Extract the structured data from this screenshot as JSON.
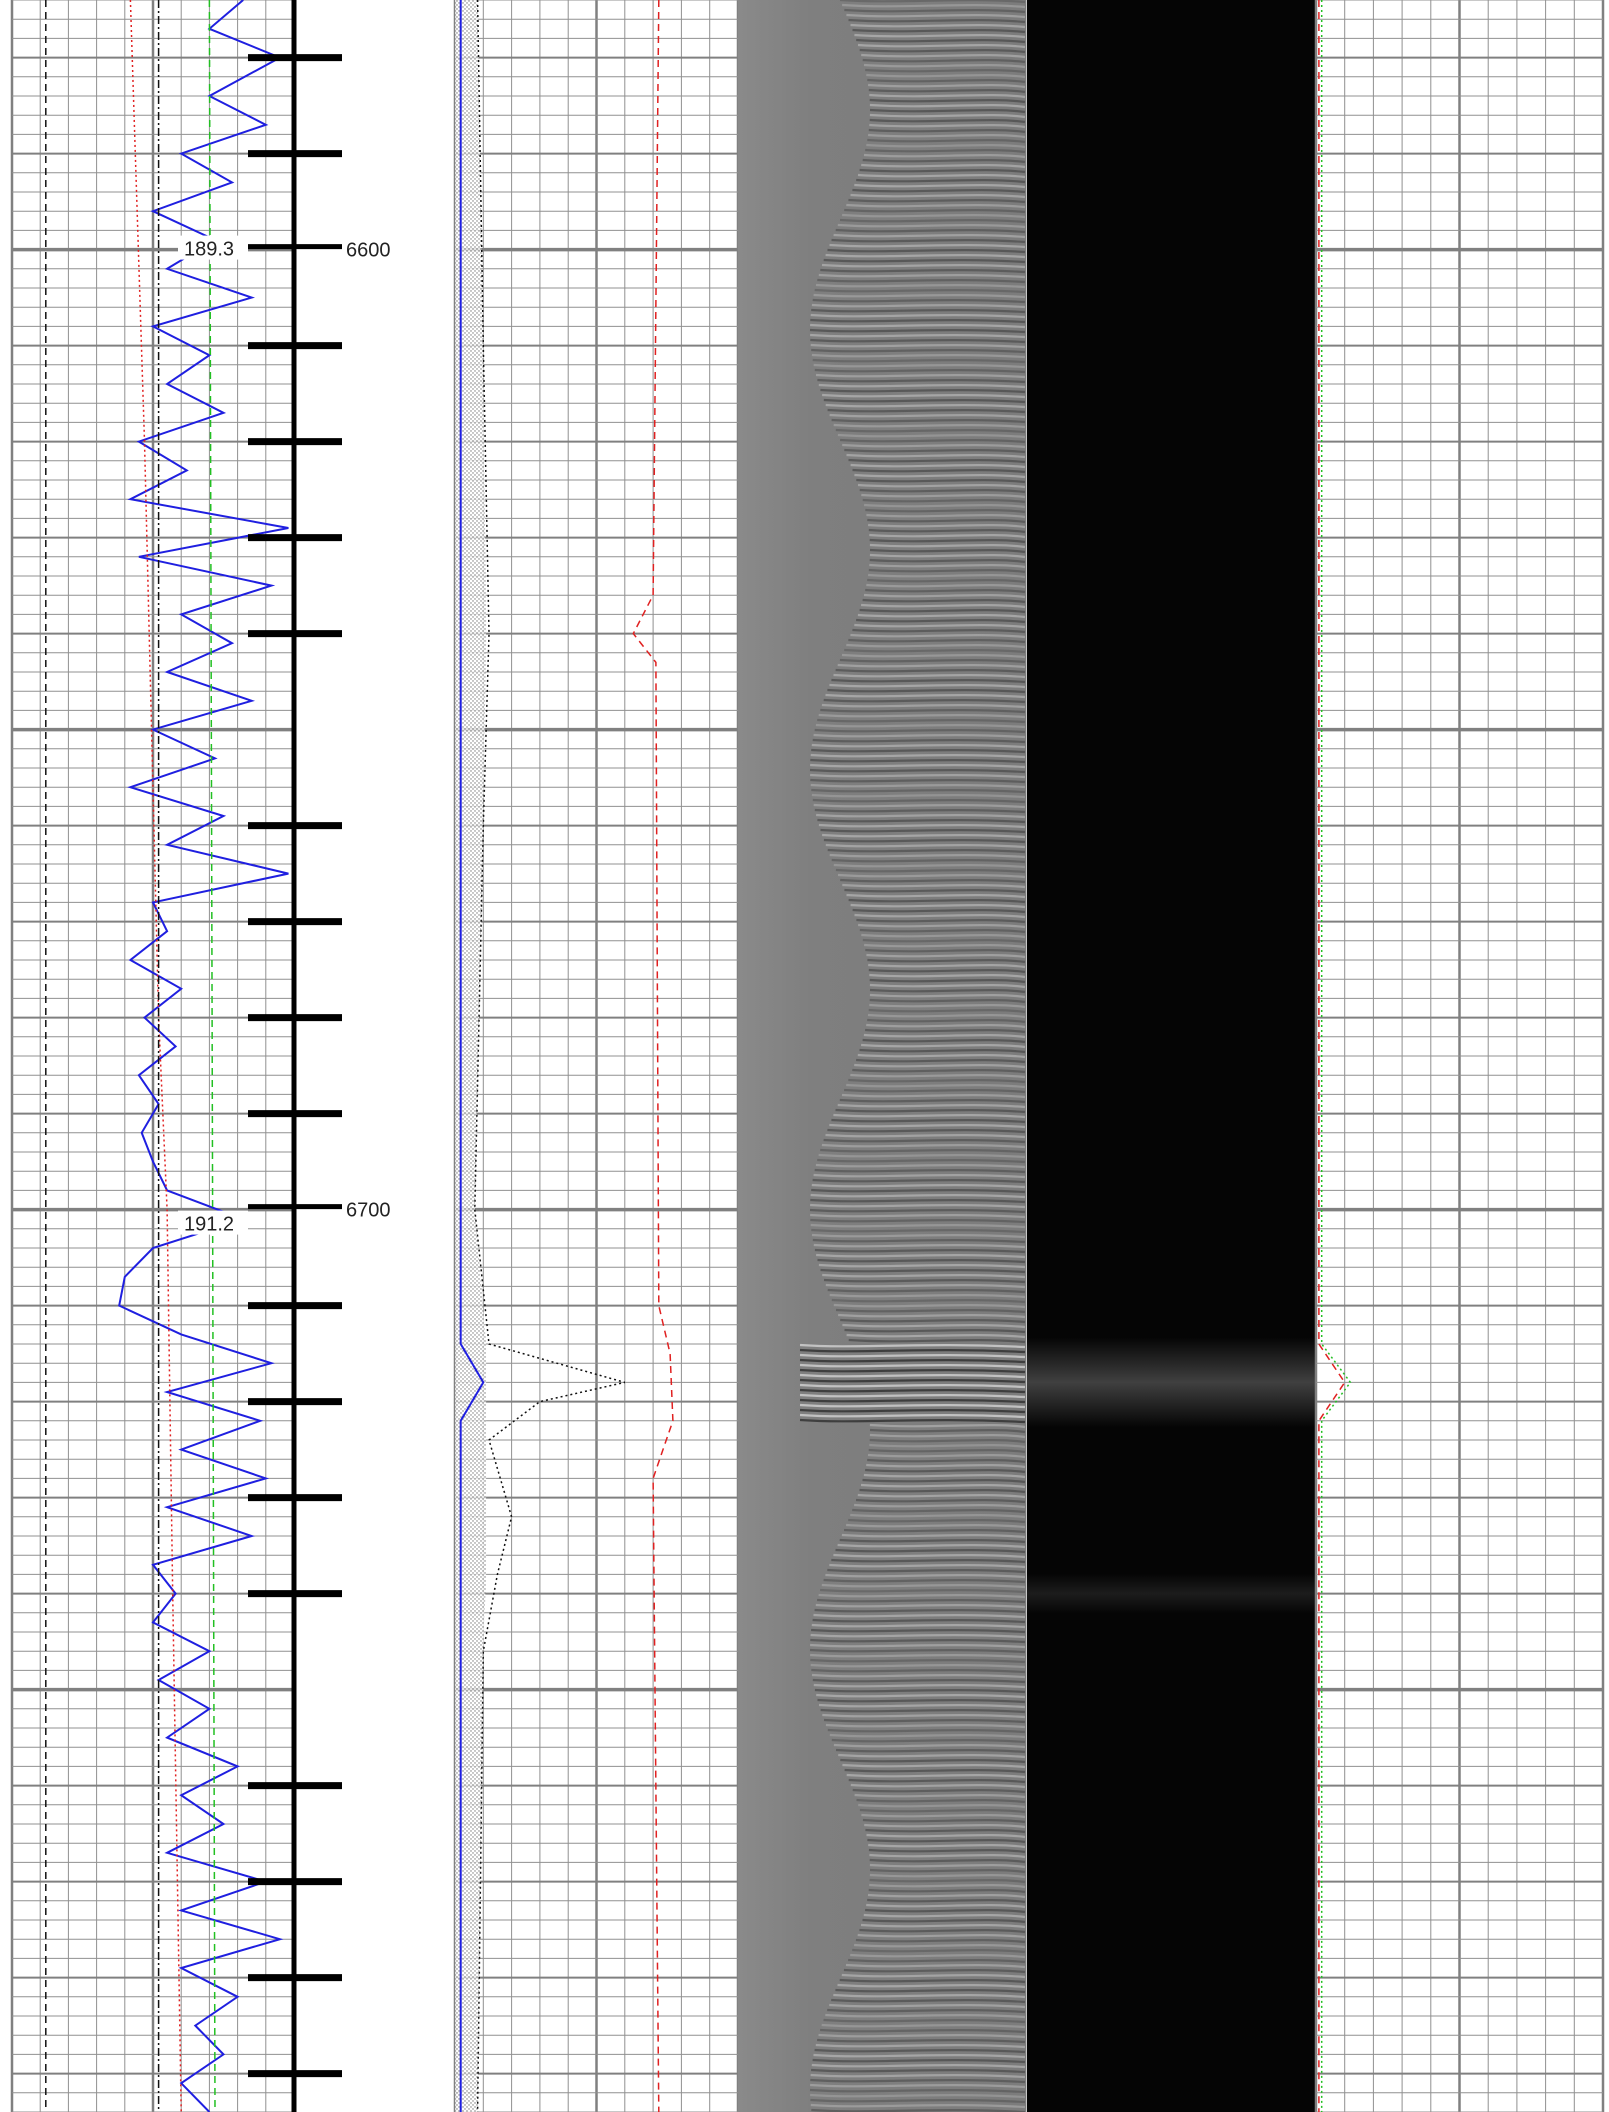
{
  "log_view": {
    "depth_labels": [
      {
        "depth": 6600,
        "label": "6600"
      },
      {
        "depth": 6700,
        "label": "6700"
      }
    ],
    "value_labels": [
      {
        "depth": 6600,
        "label": "189.3"
      },
      {
        "depth": 6700,
        "label": "191.2"
      }
    ],
    "colors": {
      "grid": "#909090",
      "grid_major": "#808080",
      "curve_primary": "#1f1fe0",
      "curve_red": "#e02020",
      "curve_green": "#22c022",
      "curve_black": "#101010",
      "waveform_bg": "#808080",
      "image_bg": "#050505"
    }
  },
  "chart_data": {
    "type": "line",
    "x_unit": "depth",
    "depth_range": [
      6574,
      6794
    ],
    "depth_ticks": [
      6600,
      6700
    ],
    "depth_minor_tick_spacing": 10,
    "annotations": [
      {
        "depth": 6600,
        "text": "189.3"
      },
      {
        "depth": 6700,
        "text": "191.2"
      }
    ],
    "tracks": [
      {
        "name": "track-1",
        "grid": true,
        "series": [
          {
            "color": "#1f1fe0",
            "style": "solid",
            "samples_rel": [
              [
                6574,
                0.82
              ],
              [
                6577,
                0.7
              ],
              [
                6580,
                0.95
              ],
              [
                6584,
                0.7
              ],
              [
                6587,
                0.9
              ],
              [
                6590,
                0.6
              ],
              [
                6593,
                0.78
              ],
              [
                6596,
                0.5
              ],
              [
                6599,
                0.72
              ],
              [
                6602,
                0.55
              ],
              [
                6605,
                0.85
              ],
              [
                6608,
                0.5
              ],
              [
                6611,
                0.7
              ],
              [
                6614,
                0.55
              ],
              [
                6617,
                0.75
              ],
              [
                6620,
                0.45
              ],
              [
                6623,
                0.62
              ],
              [
                6626,
                0.42
              ],
              [
                6629,
                0.98
              ],
              [
                6632,
                0.45
              ],
              [
                6635,
                0.92
              ],
              [
                6638,
                0.6
              ],
              [
                6641,
                0.78
              ],
              [
                6644,
                0.55
              ],
              [
                6647,
                0.85
              ],
              [
                6650,
                0.5
              ],
              [
                6653,
                0.72
              ],
              [
                6656,
                0.42
              ],
              [
                6659,
                0.75
              ],
              [
                6662,
                0.55
              ],
              [
                6665,
                0.98
              ],
              [
                6668,
                0.5
              ],
              [
                6671,
                0.55
              ],
              [
                6674,
                0.42
              ],
              [
                6677,
                0.6
              ],
              [
                6680,
                0.47
              ],
              [
                6683,
                0.58
              ],
              [
                6686,
                0.45
              ],
              [
                6689,
                0.52
              ],
              [
                6692,
                0.46
              ],
              [
                6695,
                0.5
              ],
              [
                6698,
                0.55
              ],
              [
                6701,
                0.82
              ],
              [
                6704,
                0.5
              ],
              [
                6707,
                0.4
              ],
              [
                6710,
                0.38
              ],
              [
                6713,
                0.6
              ],
              [
                6716,
                0.92
              ],
              [
                6719,
                0.55
              ],
              [
                6722,
                0.88
              ],
              [
                6725,
                0.6
              ],
              [
                6728,
                0.9
              ],
              [
                6731,
                0.55
              ],
              [
                6734,
                0.85
              ],
              [
                6737,
                0.5
              ],
              [
                6740,
                0.58
              ],
              [
                6743,
                0.5
              ],
              [
                6746,
                0.7
              ],
              [
                6749,
                0.52
              ],
              [
                6752,
                0.7
              ],
              [
                6755,
                0.55
              ],
              [
                6758,
                0.8
              ],
              [
                6761,
                0.6
              ],
              [
                6764,
                0.75
              ],
              [
                6767,
                0.55
              ],
              [
                6770,
                0.9
              ],
              [
                6773,
                0.6
              ],
              [
                6776,
                0.95
              ],
              [
                6779,
                0.6
              ],
              [
                6782,
                0.8
              ],
              [
                6785,
                0.65
              ],
              [
                6788,
                0.75
              ],
              [
                6791,
                0.6
              ],
              [
                6794,
                0.7
              ]
            ]
          },
          {
            "color": "#e02020",
            "style": "dotted",
            "samples_rel": [
              [
                6574,
                0.42
              ],
              [
                6620,
                0.47
              ],
              [
                6680,
                0.52
              ],
              [
                6700,
                0.55
              ],
              [
                6740,
                0.57
              ],
              [
                6794,
                0.6
              ]
            ]
          },
          {
            "color": "#22c022",
            "style": "dashed",
            "samples_rel": [
              [
                6574,
                0.7
              ],
              [
                6794,
                0.72
              ]
            ]
          },
          {
            "color": "#101010",
            "style": "dash-dot",
            "samples_rel": [
              [
                6574,
                0.52
              ],
              [
                6794,
                0.52
              ]
            ]
          },
          {
            "color": "#101010",
            "style": "dashed",
            "samples_rel": [
              [
                6574,
                0.12
              ],
              [
                6794,
                0.12
              ]
            ]
          }
        ]
      },
      {
        "name": "track-2",
        "grid": true,
        "series": [
          {
            "color": "#101010",
            "style": "dotted",
            "samples_rel": [
              [
                6574,
                0.08
              ],
              [
                6610,
                0.1
              ],
              [
                6640,
                0.12
              ],
              [
                6660,
                0.1
              ],
              [
                6700,
                0.07
              ],
              [
                6714,
                0.12
              ],
              [
                6718,
                0.6
              ],
              [
                6720,
                0.3
              ],
              [
                6724,
                0.12
              ],
              [
                6732,
                0.2
              ],
              [
                6738,
                0.15
              ],
              [
                6746,
                0.1
              ],
              [
                6794,
                0.08
              ]
            ]
          },
          {
            "color": "#e02020",
            "style": "dashed",
            "samples_rel": [
              [
                6574,
                0.72
              ],
              [
                6636,
                0.7
              ],
              [
                6640,
                0.63
              ],
              [
                6643,
                0.71
              ],
              [
                6710,
                0.72
              ],
              [
                6715,
                0.76
              ],
              [
                6722,
                0.77
              ],
              [
                6728,
                0.7
              ],
              [
                6794,
                0.72
              ]
            ]
          },
          {
            "color": "#1f1fe0",
            "style": "solid",
            "samples_rel": [
              [
                6574,
                0.02
              ],
              [
                6714,
                0.02
              ],
              [
                6718,
                0.1
              ],
              [
                6722,
                0.02
              ],
              [
                6794,
                0.02
              ]
            ]
          }
        ]
      },
      {
        "name": "waveform",
        "grid": false,
        "bright_band_depth": 6718
      },
      {
        "name": "image",
        "grid": false,
        "bright_band_depth": 6718
      },
      {
        "name": "track-5",
        "grid": true,
        "series": [
          {
            "color": "#22c022",
            "style": "dotted",
            "samples_rel": [
              [
                6574,
                0.02
              ],
              [
                6714,
                0.02
              ],
              [
                6718,
                0.12
              ],
              [
                6722,
                0.02
              ],
              [
                6794,
                0.02
              ]
            ]
          },
          {
            "color": "#e02020",
            "style": "dashed",
            "samples_rel": [
              [
                6574,
                0.01
              ],
              [
                6714,
                0.01
              ],
              [
                6718,
                0.1
              ],
              [
                6722,
                0.01
              ],
              [
                6794,
                0.01
              ]
            ]
          }
        ]
      }
    ]
  }
}
